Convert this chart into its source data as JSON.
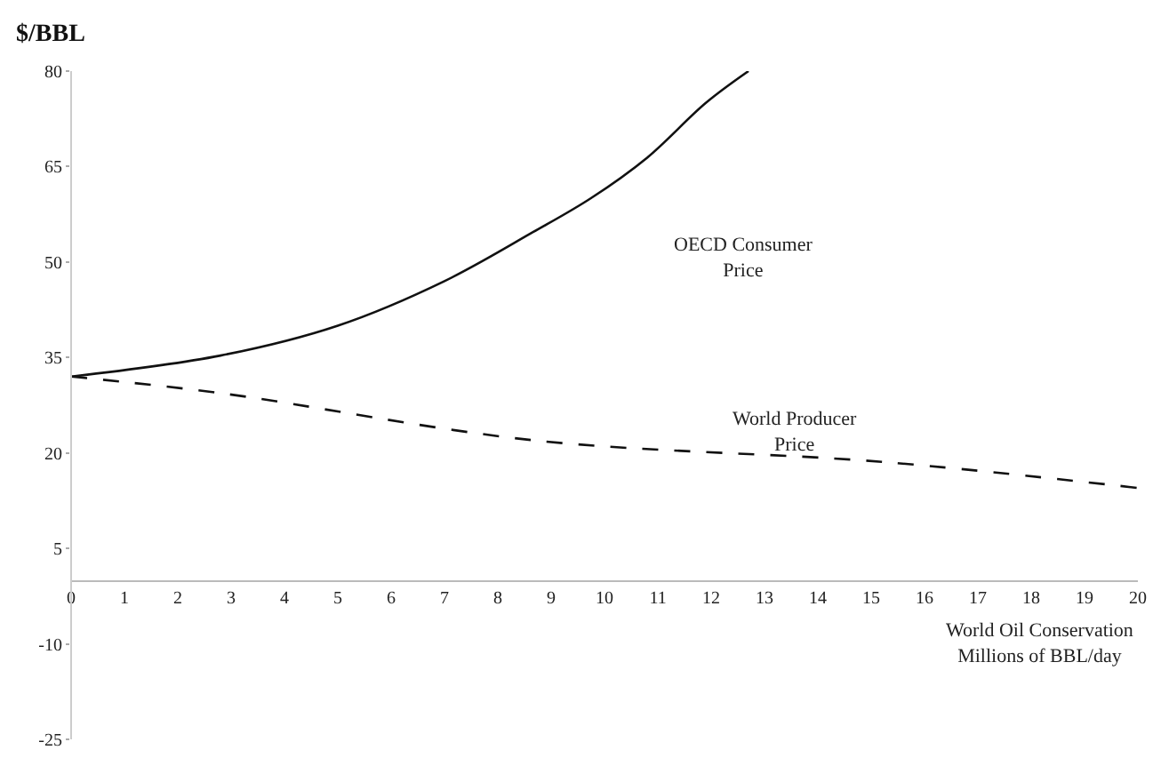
{
  "chart_data": {
    "type": "line",
    "ylabel": "$/BBL",
    "xlabel": "World Oil Conservation\nMillions of BBL/day",
    "series": [
      {
        "color": "#111111",
        "line_style": "solid",
        "x": [
          0,
          2.8,
          5,
          7,
          8.66,
          9.74,
          10.8,
          11.9,
          12.7
        ],
        "values": [
          32,
          35.3,
          40,
          47,
          54.7,
          60,
          66.4,
          75,
          80
        ]
      },
      {
        "color": "#111111",
        "line_style": "dashed",
        "x": [
          0,
          2.8,
          8.66,
          15.2,
          20
        ],
        "values": [
          32,
          29.4,
          22,
          18.6,
          14.5
        ]
      }
    ],
    "annotations": [
      "OECD Consumer\nPrice",
      "World Producer\nPrice"
    ],
    "xlim": [
      0,
      20
    ],
    "xticks": [
      0,
      1,
      2,
      3,
      4,
      5,
      6,
      7,
      8,
      9,
      10,
      11,
      12,
      13,
      14,
      15,
      16,
      17,
      18,
      19,
      20
    ],
    "ylim": [
      -25,
      80
    ],
    "yticks": [
      -25,
      -10,
      5,
      20,
      35,
      50,
      65,
      80
    ],
    "marker": "none"
  }
}
